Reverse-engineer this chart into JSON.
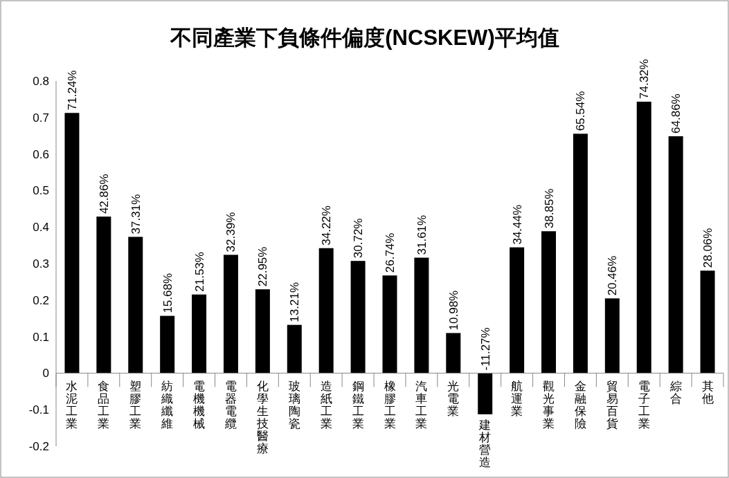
{
  "chart_data": {
    "type": "bar",
    "title": "不同產業下負條件偏度(NCSKEW)平均值",
    "categories": [
      "水泥工業",
      "食品工業",
      "塑膠工業",
      "紡織纖維",
      "電機機械",
      "電器電纜",
      "化學生技醫療",
      "玻璃陶瓷",
      "造紙工業",
      "鋼鐵工業",
      "橡膠工業",
      "汽車工業",
      "光電業",
      "建材營造",
      "航運業",
      "觀光事業",
      "金融保險",
      "貿易百貨",
      "電子工業",
      "綜合",
      "其他"
    ],
    "values": [
      0.7124,
      0.4286,
      0.3731,
      0.1568,
      0.2153,
      0.3239,
      0.2295,
      0.1321,
      0.3422,
      0.3072,
      0.2674,
      0.3161,
      0.1098,
      -0.1127,
      0.3444,
      0.3885,
      0.6554,
      0.2046,
      0.7432,
      0.6486,
      0.2806
    ],
    "value_labels": [
      "71.24%",
      "42.86%",
      "37.31%",
      "15.68%",
      "21.53%",
      "32.39%",
      "22.95%",
      "13.21%",
      "34.22%",
      "30.72%",
      "26.74%",
      "31.61%",
      "10.98%",
      "-11.27%",
      "34.44%",
      "38.85%",
      "65.54%",
      "20.46%",
      "74.32%",
      "64.86%",
      "28.06%"
    ],
    "color": "#000000",
    "ylim": [
      -0.2,
      0.8
    ],
    "yticks": [
      -0.2,
      -0.1,
      0,
      0.1,
      0.2,
      0.3,
      0.4,
      0.5,
      0.6,
      0.7,
      0.8
    ],
    "grid": false
  }
}
